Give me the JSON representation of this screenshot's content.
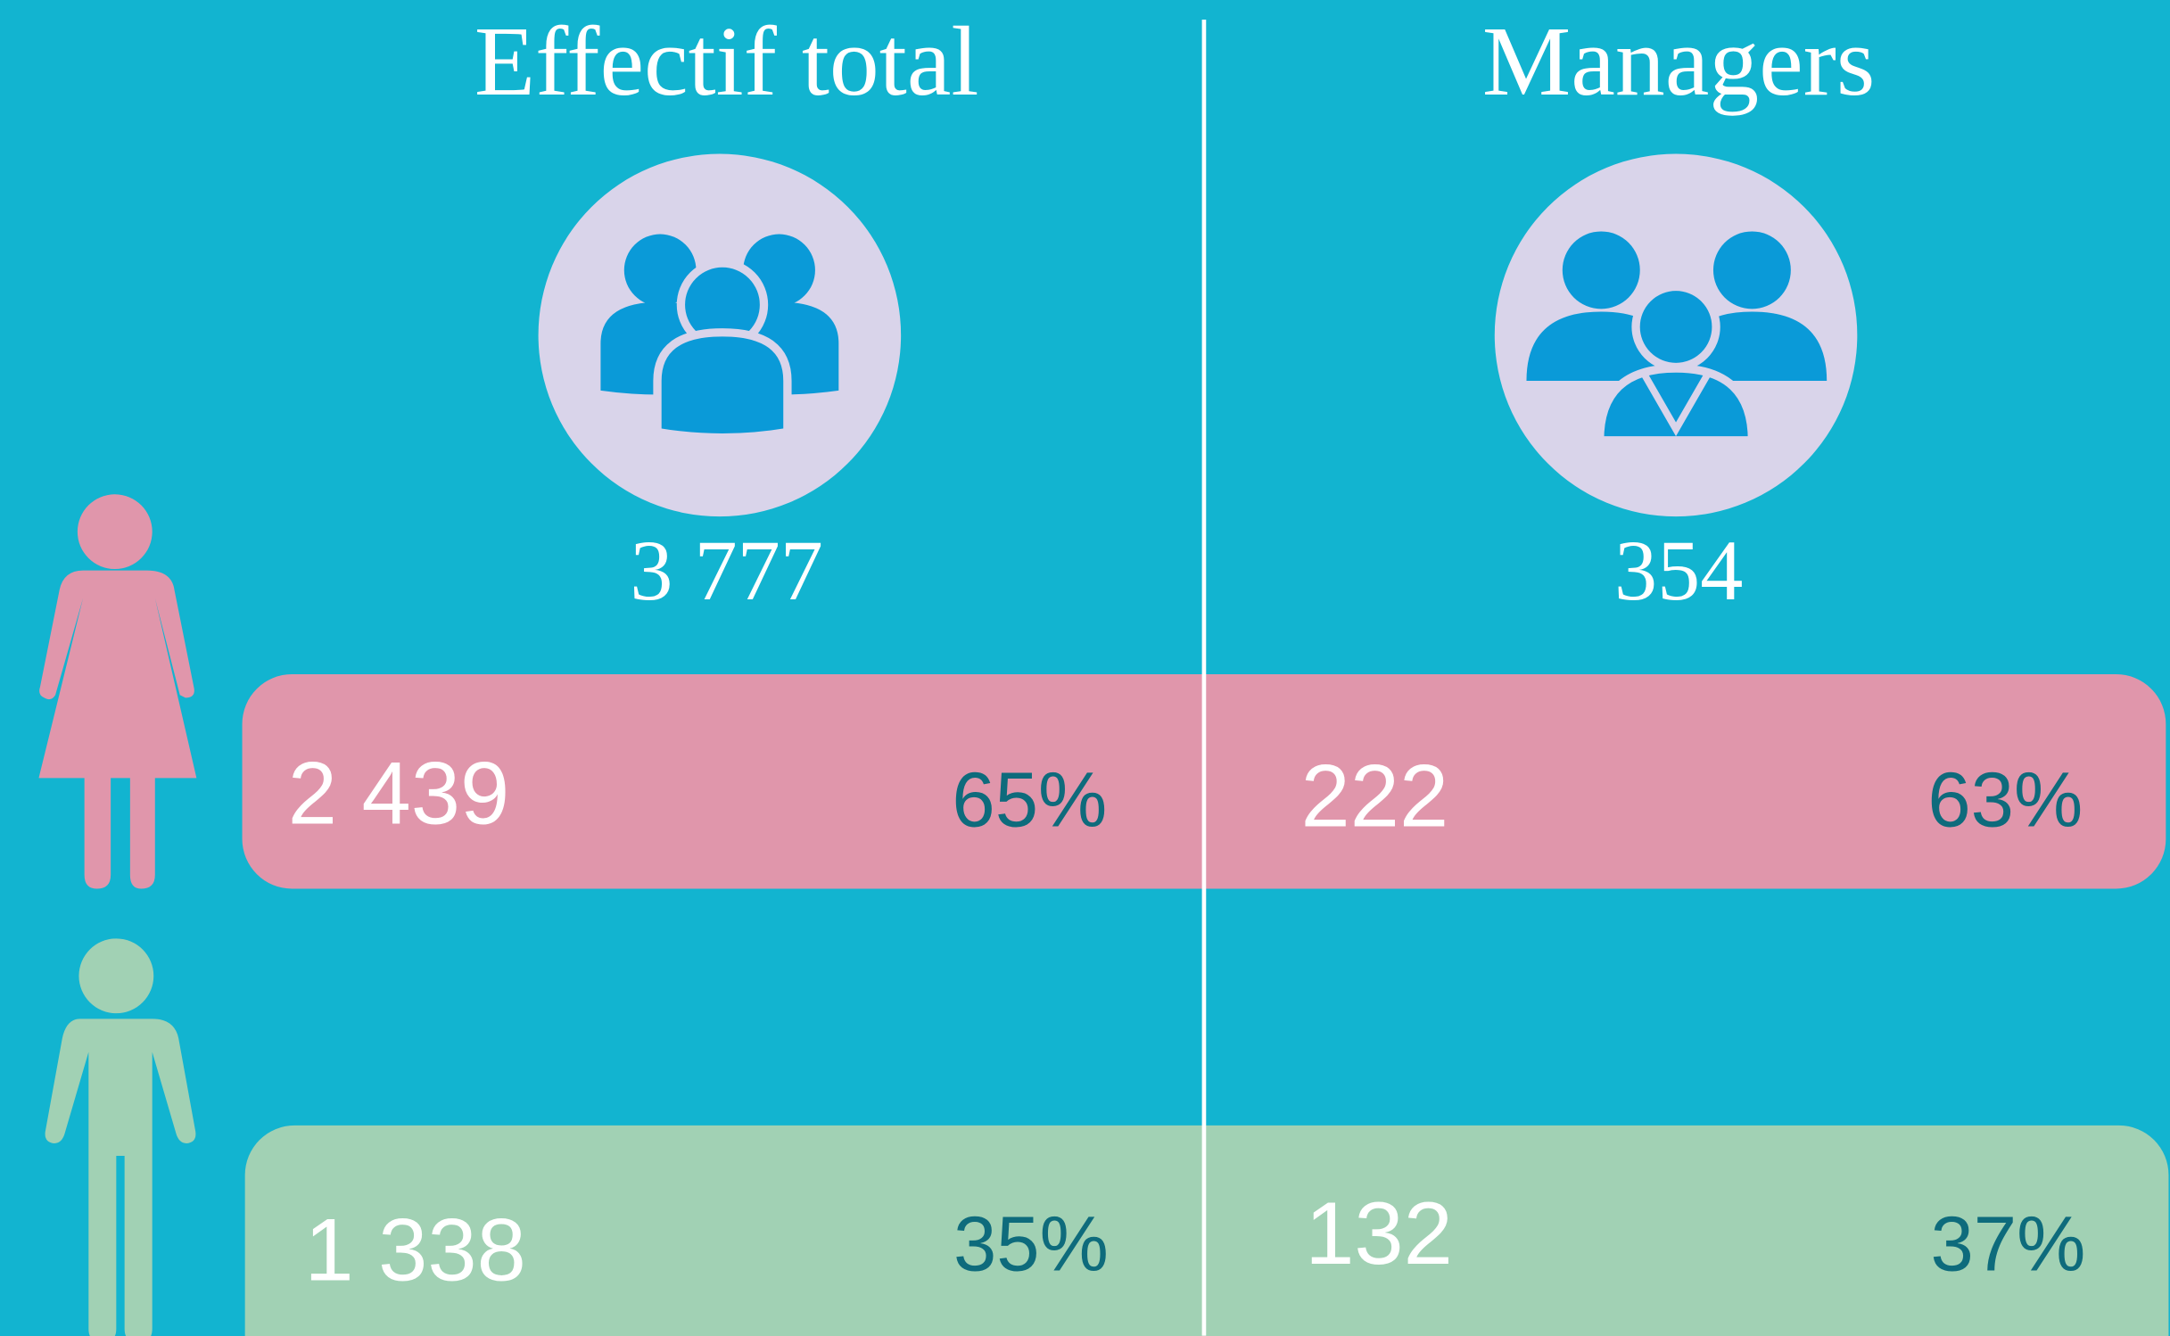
{
  "columns": [
    {
      "title": "Effectif total",
      "total": "3 777"
    },
    {
      "title": "Managers",
      "total": "354"
    }
  ],
  "rows": [
    {
      "cells": [
        {
          "count": "2 439",
          "percent": "65%"
        },
        {
          "count": "222",
          "percent": "63%"
        }
      ]
    },
    {
      "cells": [
        {
          "count": "1 338",
          "percent": "35%"
        },
        {
          "count": "132",
          "percent": "37%"
        }
      ]
    }
  ]
}
